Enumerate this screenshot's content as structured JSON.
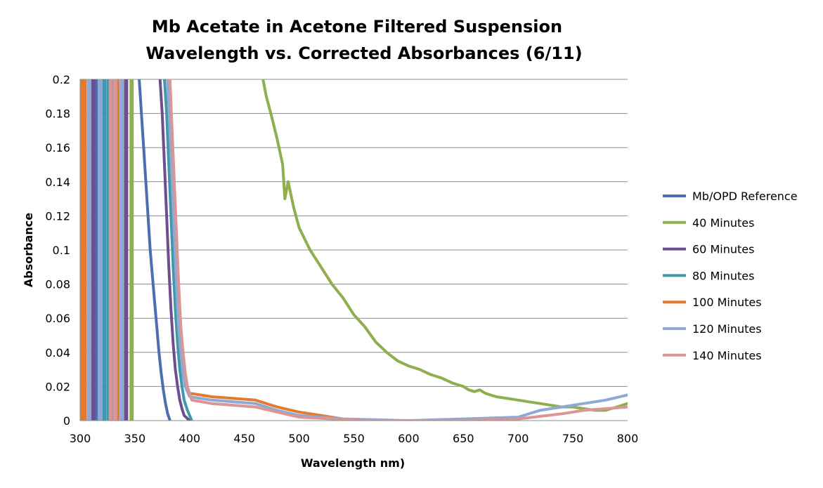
{
  "chart_data": {
    "type": "line",
    "title": [
      "Mb Acetate in Acetone Filtered Suspension",
      "Wavelength vs. Corrected Absorbances (6/11)"
    ],
    "xlabel": "Wavelength nm)",
    "ylabel": "Absorbance",
    "xlim": [
      300,
      800
    ],
    "ylim": [
      0,
      0.2
    ],
    "x_ticks": [
      "300",
      "350",
      "400",
      "450",
      "500",
      "550",
      "600",
      "650",
      "700",
      "750",
      "800"
    ],
    "y_ticks": [
      "0",
      "0.02",
      "0.04",
      "0.06",
      "0.08",
      "0.1",
      "0.12",
      "0.14",
      "0.16",
      "0.18",
      "0.2"
    ],
    "grid": "horizontal",
    "legend_position": "right",
    "series": [
      {
        "name": "Mb/OPD Reference",
        "color": "#4a70b0",
        "x": [
          354,
          356,
          358,
          360,
          362,
          364,
          366,
          368,
          370,
          372,
          374,
          376,
          378,
          380,
          382
        ],
        "y": [
          0.2,
          0.18,
          0.16,
          0.14,
          0.12,
          0.1,
          0.085,
          0.07,
          0.055,
          0.04,
          0.028,
          0.018,
          0.01,
          0.004,
          0
        ],
        "spikes_x": [
          315,
          330
        ]
      },
      {
        "name": "40 Minutes",
        "color": "#8faf4e",
        "x": [
          467,
          470,
          475,
          480,
          485,
          487,
          490,
          495,
          500,
          510,
          520,
          530,
          540,
          550,
          560,
          570,
          580,
          590,
          600,
          610,
          620,
          630,
          640,
          650,
          655,
          660,
          665,
          670,
          680,
          690,
          700,
          710,
          720,
          730,
          740,
          750,
          760,
          770,
          780,
          790,
          800
        ],
        "y": [
          0.2,
          0.19,
          0.178,
          0.165,
          0.15,
          0.13,
          0.14,
          0.125,
          0.113,
          0.1,
          0.09,
          0.08,
          0.072,
          0.062,
          0.055,
          0.046,
          0.04,
          0.035,
          0.032,
          0.03,
          0.027,
          0.025,
          0.022,
          0.02,
          0.018,
          0.017,
          0.018,
          0.016,
          0.014,
          0.013,
          0.012,
          0.011,
          0.01,
          0.009,
          0.008,
          0.008,
          0.007,
          0.006,
          0.006,
          0.008,
          0.01
        ],
        "spikes_x": [
          347
        ]
      },
      {
        "name": "60 Minutes",
        "color": "#6b4f8e",
        "x": [
          373,
          375,
          377,
          379,
          381,
          383,
          385,
          387,
          389,
          391,
          393,
          395,
          400
        ],
        "y": [
          0.2,
          0.18,
          0.15,
          0.12,
          0.09,
          0.065,
          0.045,
          0.03,
          0.02,
          0.012,
          0.007,
          0.003,
          0
        ],
        "spikes_x": [
          312,
          342
        ]
      },
      {
        "name": "80 Minutes",
        "color": "#3f99ae",
        "x": [
          377,
          379,
          381,
          383,
          385,
          387,
          389,
          391,
          393,
          395,
          398,
          402
        ],
        "y": [
          0.2,
          0.18,
          0.15,
          0.12,
          0.09,
          0.065,
          0.045,
          0.03,
          0.02,
          0.012,
          0.006,
          0
        ],
        "spikes_x": [
          322,
          326
        ]
      },
      {
        "name": "100 Minutes",
        "color": "#e07b30",
        "x": [
          380,
          382,
          384,
          386,
          388,
          390,
          392,
          394,
          396,
          400,
          410,
          420,
          440,
          460,
          480,
          500,
          520,
          540,
          560
        ],
        "y": [
          0.2,
          0.17,
          0.14,
          0.11,
          0.08,
          0.055,
          0.04,
          0.028,
          0.02,
          0.016,
          0.015,
          0.014,
          0.013,
          0.012,
          0.008,
          0.005,
          0.003,
          0.001,
          0
        ],
        "spikes_x": [
          302,
          304,
          334
        ]
      },
      {
        "name": "120 Minutes",
        "color": "#8ea9d6",
        "x": [
          380,
          382,
          384,
          386,
          388,
          390,
          392,
          394,
          396,
          400,
          420,
          440,
          460,
          480,
          500,
          540,
          600,
          700,
          720,
          740,
          760,
          780,
          800
        ],
        "y": [
          0.2,
          0.17,
          0.14,
          0.11,
          0.08,
          0.055,
          0.04,
          0.028,
          0.02,
          0.014,
          0.012,
          0.011,
          0.01,
          0.006,
          0.003,
          0.001,
          0.0,
          0.002,
          0.006,
          0.008,
          0.01,
          0.012,
          0.015
        ],
        "spikes_x": [
          308,
          318,
          338
        ]
      },
      {
        "name": "140 Minutes",
        "color": "#d99694",
        "x": [
          382,
          384,
          386,
          388,
          390,
          392,
          394,
          396,
          398,
          402,
          420,
          440,
          460,
          480,
          500,
          560,
          650,
          700,
          740,
          760,
          780,
          800
        ],
        "y": [
          0.2,
          0.17,
          0.14,
          0.11,
          0.08,
          0.055,
          0.04,
          0.028,
          0.02,
          0.012,
          0.01,
          0.009,
          0.008,
          0.005,
          0.002,
          0.0,
          0.0,
          0.001,
          0.004,
          0.006,
          0.007,
          0.008
        ],
        "spikes_x": [
          328,
          332
        ]
      }
    ]
  }
}
